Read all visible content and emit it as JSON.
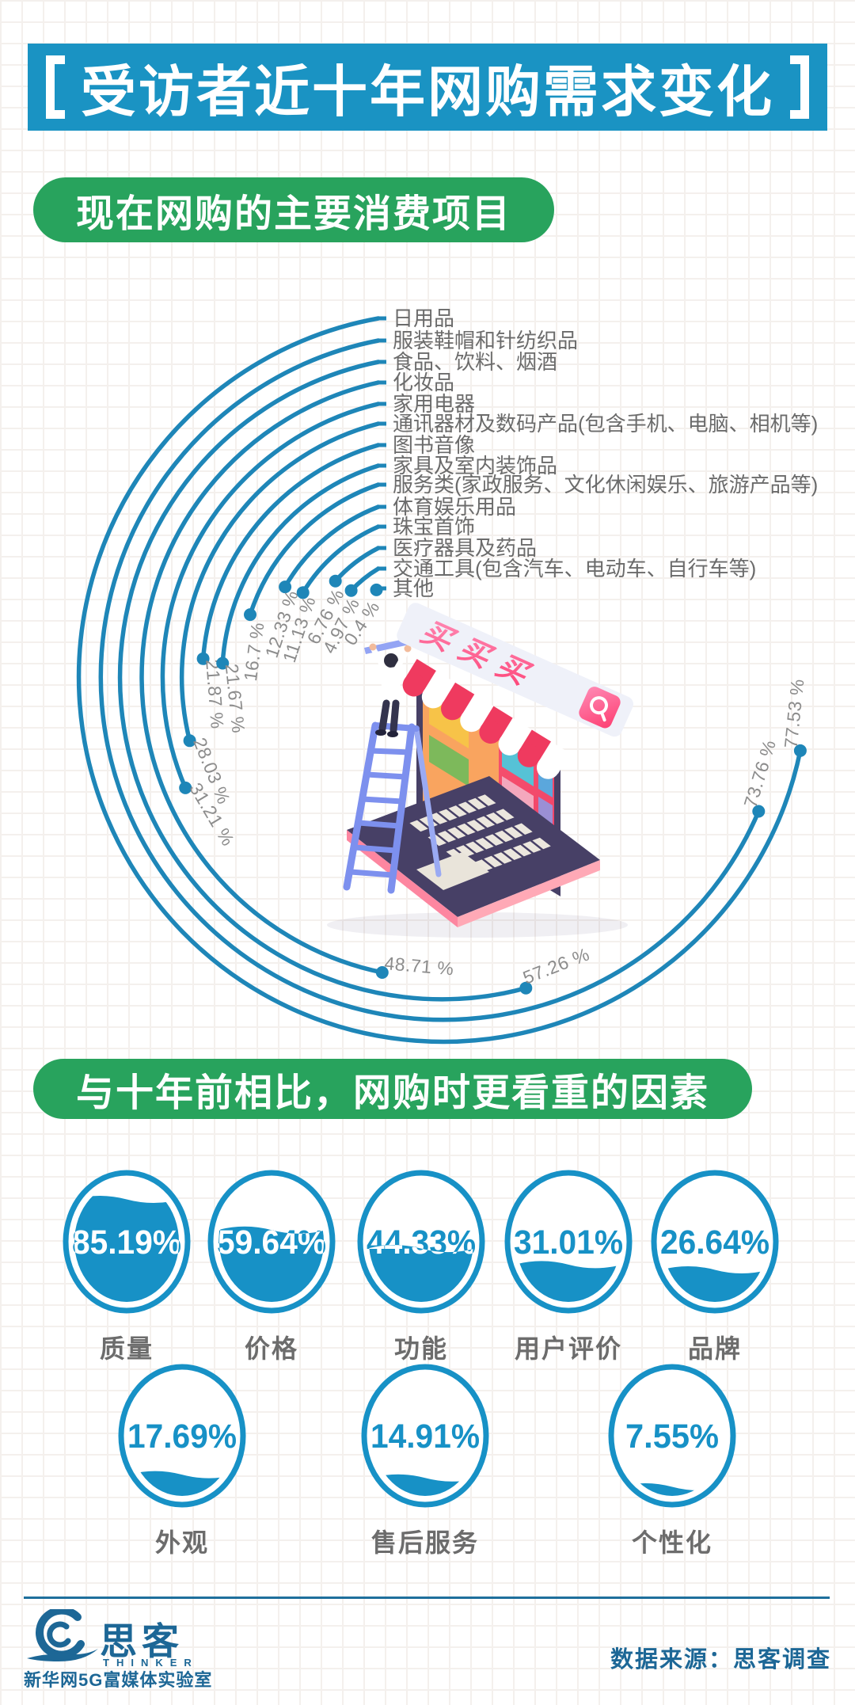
{
  "header": {
    "title": "受访者近十年网购需求变化",
    "bg_color": "#1a93c3",
    "text_color": "#ffffff"
  },
  "sections": {
    "current_items": {
      "heading": "现在网购的主要消费项目",
      "bg_color": "#28a35d"
    },
    "factors": {
      "heading": "与十年前相比，网购时更看重的因素",
      "bg_color": "#28a35d"
    }
  },
  "chart_data": [
    {
      "type": "bar",
      "layout": "polar-arcs",
      "title": "现在网购的主要消费项目",
      "unit": "%",
      "categories": [
        "日用品",
        "服装鞋帽和针纺织品",
        "食品、饮料、烟酒",
        "化妆品",
        "家用电器",
        "通讯器材及数码产品(包含手机、电脑、相机等)",
        "图书音像",
        "家具及室内装饰品",
        "服务类(家政服务、文化休闲娱乐、旅游产品等)",
        "体育娱乐用品",
        "珠宝首饰",
        "医疗器具及药品",
        "交通工具(包含汽车、电动车、自行车等)",
        "其他"
      ],
      "values": [
        77.53,
        73.76,
        57.26,
        48.71,
        31.21,
        28.03,
        21.87,
        21.67,
        16.7,
        12.33,
        11.13,
        6.76,
        4.97,
        0.4
      ],
      "value_labels": [
        "77.53 %",
        "73.76 %",
        "57.26 %",
        "48.71 %",
        "31.21 %",
        "28.03 %",
        "21.87 %",
        "21.67 %",
        "16.7 %",
        "12.33 %",
        "11.13 %",
        "6.76 %",
        "4.97 %",
        "0.4 %"
      ],
      "arc_color": "#1e86b8",
      "label_color": "#6b6b6b",
      "value_label_color": "#8c8c8c",
      "legend": "none",
      "grid": "off"
    },
    {
      "type": "bar",
      "layout": "liquid-fill-circles",
      "title": "与十年前相比，网购时更看重的因素",
      "unit": "%",
      "items": [
        {
          "label": "质量",
          "value": 85.19,
          "value_label": "85.19%"
        },
        {
          "label": "价格",
          "value": 59.64,
          "value_label": "59.64%"
        },
        {
          "label": "功能",
          "value": 44.33,
          "value_label": "44.33%"
        },
        {
          "label": "用户评价",
          "value": 31.01,
          "value_label": "31.01%"
        },
        {
          "label": "品牌",
          "value": 26.64,
          "value_label": "26.64%"
        },
        {
          "label": "外观",
          "value": 17.69,
          "value_label": "17.69%"
        },
        {
          "label": "售后服务",
          "value": 14.91,
          "value_label": "14.91%"
        },
        {
          "label": "个性化",
          "value": 7.55,
          "value_label": "7.55%"
        }
      ],
      "fill_color": "#1791c6",
      "label_color": "#6c6c6c"
    }
  ],
  "illustration": {
    "store_banner_text": "买买买",
    "search_icon": "magnifier-icon"
  },
  "footer": {
    "brand": "思客",
    "brand_latin": "THINKER",
    "lab": "新华网5G富媒体实验室",
    "source": "数据来源：思客调查",
    "color": "#1d6796"
  }
}
